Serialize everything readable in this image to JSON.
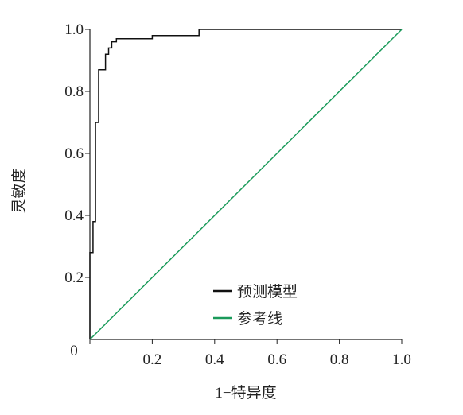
{
  "chart_data": {
    "type": "line",
    "xlabel": "1−特异度",
    "ylabel": "灵敏度",
    "xlim": [
      0,
      1
    ],
    "ylim": [
      0,
      1
    ],
    "xticks": [
      {
        "value": 0,
        "label": "0"
      },
      0.2,
      0.4,
      0.6,
      0.8,
      {
        "value": 1,
        "label": "1.0"
      }
    ],
    "yticks": [
      0.2,
      0.4,
      0.6,
      0.8,
      {
        "value": 1,
        "label": "1.0"
      }
    ],
    "series": [
      {
        "name": "预测模型",
        "color": "#111111",
        "x": [
          0,
          0,
          0.01,
          0.01,
          0.018,
          0.018,
          0.028,
          0.028,
          0.05,
          0.05,
          0.06,
          0.06,
          0.07,
          0.07,
          0.085,
          0.085,
          0.2,
          0.2,
          0.35,
          0.35,
          1
        ],
        "values": [
          0,
          0.28,
          0.28,
          0.38,
          0.38,
          0.7,
          0.7,
          0.87,
          0.87,
          0.92,
          0.92,
          0.94,
          0.94,
          0.96,
          0.96,
          0.97,
          0.97,
          0.98,
          0.98,
          1,
          1
        ]
      },
      {
        "name": "参考线",
        "color": "#1a9a5a",
        "x": [
          0,
          1
        ],
        "values": [
          0,
          1
        ]
      }
    ]
  }
}
